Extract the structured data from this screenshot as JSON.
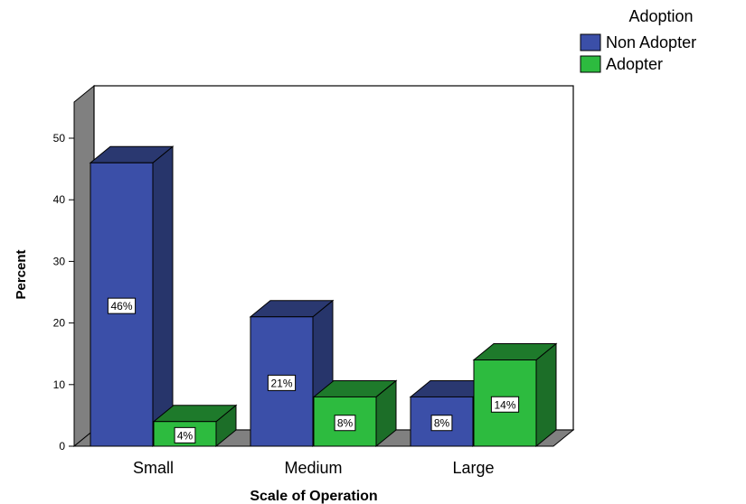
{
  "chart_data": {
    "type": "bar",
    "title": "",
    "xlabel": "Scale of Operation",
    "ylabel": "Percent",
    "ylim": [
      0,
      50
    ],
    "yticks": [
      0,
      10,
      20,
      30,
      40,
      50
    ],
    "grid": false,
    "categories": [
      "Small",
      "Medium",
      "Large"
    ],
    "legend": {
      "title": "Adoption",
      "placement": "top-right"
    },
    "series": [
      {
        "name": "Non Adopter",
        "values": [
          46,
          21,
          8
        ],
        "data_labels": [
          "46%",
          "21%",
          "8%"
        ],
        "color": "#3B4FA8",
        "top_color": "#2A3870",
        "side_color": "#27356B"
      },
      {
        "name": "Adopter",
        "values": [
          4,
          8,
          14
        ],
        "data_labels": [
          "4%",
          "8%",
          "14%"
        ],
        "color": "#2DBB3F",
        "top_color": "#1E7A2B",
        "side_color": "#1C6E28"
      }
    ]
  }
}
